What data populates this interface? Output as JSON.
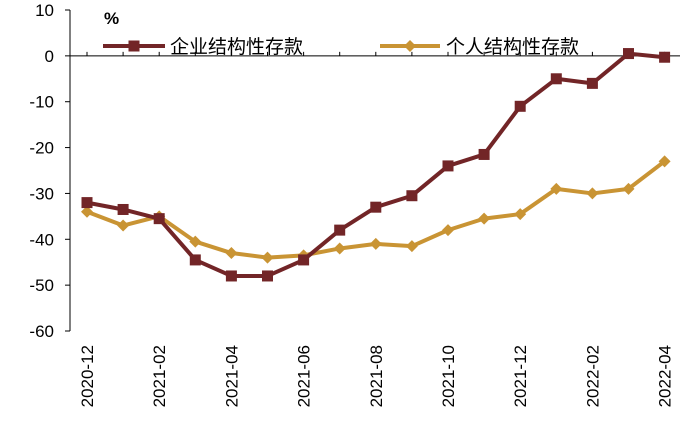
{
  "chart_data": {
    "type": "line",
    "unit": "%",
    "x": [
      "2020-12",
      "2021-01",
      "2021-02",
      "2021-03",
      "2021-04",
      "2021-05",
      "2021-06",
      "2021-07",
      "2021-08",
      "2021-09",
      "2021-10",
      "2021-11",
      "2021-12",
      "2022-01",
      "2022-02",
      "2022-03",
      "2022-04"
    ],
    "x_tick_labels": [
      "2020-12",
      "2021-02",
      "2021-04",
      "2021-06",
      "2021-08",
      "2021-10",
      "2021-12",
      "2022-02",
      "2022-04"
    ],
    "y_ticks": [
      10,
      0,
      -10,
      -20,
      -30,
      -40,
      -50,
      -60
    ],
    "ylim": [
      -60,
      10
    ],
    "grid": false,
    "legend_position": "top",
    "series": [
      {
        "name": "企业结构性存款",
        "color": "#722527",
        "marker": "square",
        "values": [
          -32,
          -33.5,
          -35.5,
          -44.5,
          -48,
          -48,
          -44.5,
          -38,
          -33,
          -30.5,
          -24,
          -21.5,
          -11,
          -5,
          -6,
          0.5,
          -0.3
        ]
      },
      {
        "name": "个人结构性存款",
        "color": "#C99434",
        "marker": "diamond",
        "values": [
          -34,
          -37,
          -35,
          -40.5,
          -43,
          -44,
          -43.5,
          -42,
          -41,
          -41.5,
          -38,
          -35.5,
          -34.5,
          -29,
          -30,
          -29,
          -23
        ]
      }
    ]
  }
}
